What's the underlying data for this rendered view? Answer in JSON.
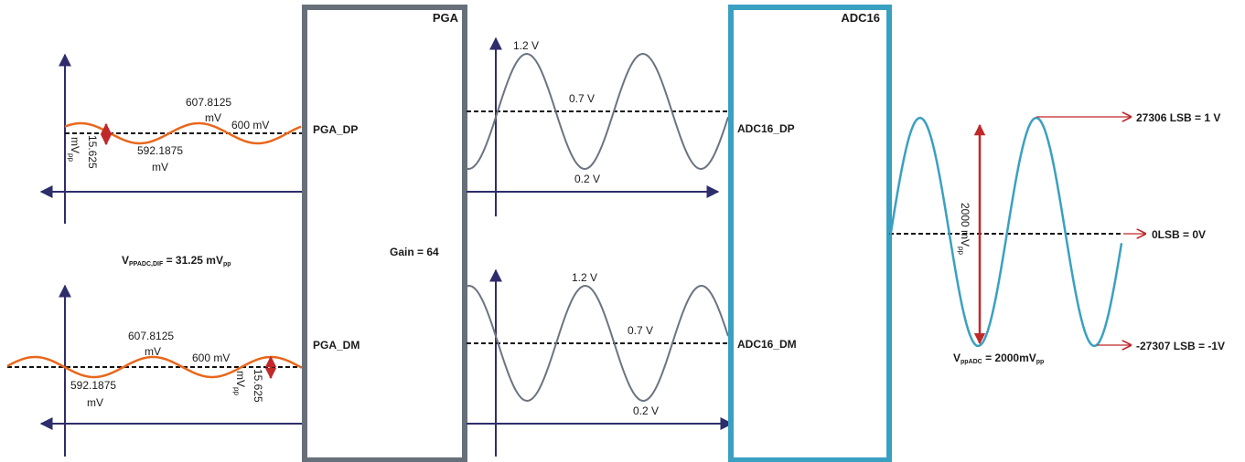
{
  "blocks": {
    "pga": {
      "title": "PGA",
      "gain": "Gain = 64",
      "in_dp": "PGA_DP",
      "in_dm": "PGA_DM",
      "color": "#67707a"
    },
    "adc": {
      "title": "ADC16",
      "in_dp": "ADC16_DP",
      "in_dm": "ADC16_DM",
      "color": "#3aa0c2"
    }
  },
  "input_dp": {
    "max": "607.8125",
    "max_unit": "mV",
    "min": "592.1875",
    "min_unit": "mV",
    "mid": "600 mV",
    "amp_value": "15.625",
    "amp_unit": "mV",
    "amp_unit_sub": "pp"
  },
  "input_dm": {
    "max": "607.8125",
    "max_unit": "mV",
    "min": "592.1875",
    "min_unit": "mV",
    "mid": "600 mV",
    "amp_value": "15.625",
    "amp_unit": "mV",
    "amp_unit_sub": "pp"
  },
  "vppadc_dif": {
    "prefix": "V",
    "sub": "PPADC,DIF",
    "value": " = 31.25 mV",
    "unit_sub": "pp"
  },
  "pga_out_dp": {
    "max": "1.2 V",
    "mid": "0.7 V",
    "min": "0.2 V"
  },
  "pga_out_dm": {
    "max": "1.2 V",
    "mid": "0.7 V",
    "min": "0.2 V"
  },
  "adc_output": {
    "amp_label": "2000 mV",
    "amp_sub": "pp",
    "vpp_prefix": "V",
    "vpp_sub": "ppADC",
    "vpp_value": " = 2000mV",
    "vpp_unit_sub": "pp",
    "label_top": "27306 LSB  = 1 V",
    "label_mid": "0LSB = 0V",
    "label_bot": "-27307 LSB = -1V"
  },
  "colors": {
    "input_wave": "#e8671b",
    "pga_wave": "#6b7480",
    "adc_wave": "#3aa0c2",
    "arrow_red": "#c0282a",
    "axis": "#2e2d6b"
  }
}
